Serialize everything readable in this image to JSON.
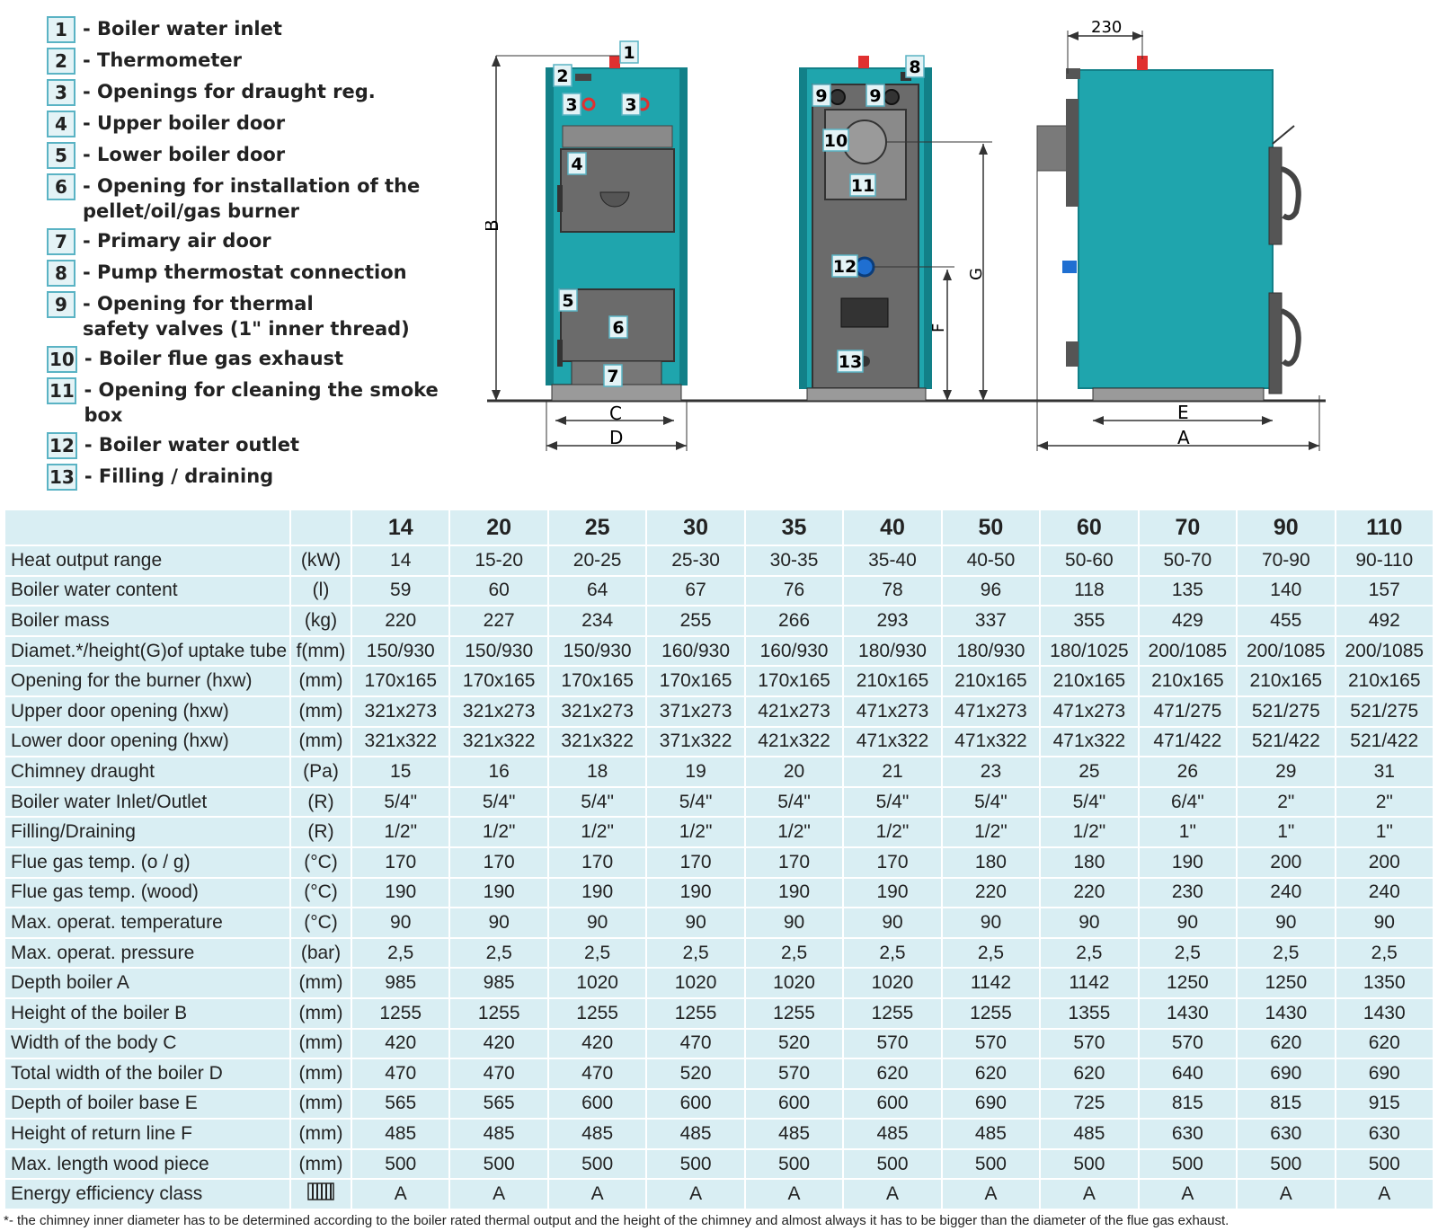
{
  "legend": [
    {
      "num": "1",
      "text": "- Boiler water inlet"
    },
    {
      "num": "2",
      "text": "- Thermometer"
    },
    {
      "num": "3",
      "text": "- Openings for draught reg."
    },
    {
      "num": "4",
      "text": "- Upper boiler door"
    },
    {
      "num": "5",
      "text": "- Lower boiler door"
    },
    {
      "num": "6",
      "text": "- Opening for installation of the\n  pellet/oil/gas burner"
    },
    {
      "num": "7",
      "text": "- Primary air door"
    },
    {
      "num": "8",
      "text": "- Pump thermostat connection"
    },
    {
      "num": "9",
      "text": "- Opening for thermal\n  safety valves (1\" inner thread)"
    },
    {
      "num": "10",
      "text": "- Boiler flue gas exhaust"
    },
    {
      "num": "11",
      "text": "- Opening for cleaning the smoke box"
    },
    {
      "num": "12",
      "text": "- Boiler water outlet"
    },
    {
      "num": "13",
      "text": "- Filling / draining"
    }
  ],
  "drawing": {
    "dim_230": "230",
    "letters": {
      "A": "A",
      "B": "B",
      "C": "C",
      "D": "D",
      "E": "E",
      "F": "F",
      "G": "G"
    },
    "colors": {
      "body": "#1fa5ad",
      "body_dark": "#128088",
      "door": "#6b6b6b",
      "accent": "#e03030",
      "label_bg": "#e4f3f6",
      "label_border": "#5ab3c4"
    }
  },
  "table": {
    "models": [
      "14",
      "20",
      "25",
      "30",
      "35",
      "40",
      "50",
      "60",
      "70",
      "90",
      "110"
    ],
    "rows": [
      {
        "label": "Heat output range",
        "unit": "(kW)",
        "values": [
          "14",
          "15-20",
          "20-25",
          "25-30",
          "30-35",
          "35-40",
          "40-50",
          "50-60",
          "50-70",
          "70-90",
          "90-110"
        ]
      },
      {
        "label": "Boiler water content",
        "unit": "(l)",
        "values": [
          "59",
          "60",
          "64",
          "67",
          "76",
          "78",
          "96",
          "118",
          "135",
          "140",
          "157"
        ]
      },
      {
        "label": "Boiler mass",
        "unit": "(kg)",
        "values": [
          "220",
          "227",
          "234",
          "255",
          "266",
          "293",
          "337",
          "355",
          "429",
          "455",
          "492"
        ]
      },
      {
        "label": "Diamet.*/height(G)of uptake tube",
        "unit": "f(mm)",
        "values": [
          "150/930",
          "150/930",
          "150/930",
          "160/930",
          "160/930",
          "180/930",
          "180/930",
          "180/1025",
          "200/1085",
          "200/1085",
          "200/1085"
        ]
      },
      {
        "label": "Opening for the burner (hxw)",
        "unit": "(mm)",
        "values": [
          "170x165",
          "170x165",
          "170x165",
          "170x165",
          "170x165",
          "210x165",
          "210x165",
          "210x165",
          "210x165",
          "210x165",
          "210x165"
        ]
      },
      {
        "label": "Upper door opening (hxw)",
        "unit": "(mm)",
        "values": [
          "321x273",
          "321x273",
          "321x273",
          "371x273",
          "421x273",
          "471x273",
          "471x273",
          "471x273",
          "471/275",
          "521/275",
          "521/275"
        ]
      },
      {
        "label": "Lower door opening (hxw)",
        "unit": "(mm)",
        "values": [
          "321x322",
          "321x322",
          "321x322",
          "371x322",
          "421x322",
          "471x322",
          "471x322",
          "471x322",
          "471/422",
          "521/422",
          "521/422"
        ]
      },
      {
        "label": "Chimney draught",
        "unit": "(Pa)",
        "values": [
          "15",
          "16",
          "18",
          "19",
          "20",
          "21",
          "23",
          "25",
          "26",
          "29",
          "31"
        ]
      },
      {
        "label": "Boiler water Inlet/Outlet",
        "unit": "(R)",
        "values": [
          "5/4\"",
          "5/4\"",
          "5/4\"",
          "5/4\"",
          "5/4\"",
          "5/4\"",
          "5/4\"",
          "5/4\"",
          "6/4\"",
          "2\"",
          "2\""
        ]
      },
      {
        "label": "Filling/Draining",
        "unit": "(R)",
        "values": [
          "1/2\"",
          "1/2\"",
          "1/2\"",
          "1/2\"",
          "1/2\"",
          "1/2\"",
          "1/2\"",
          "1/2\"",
          "1\"",
          "1\"",
          "1\""
        ]
      },
      {
        "label": "Flue gas temp. (o / g)",
        "unit": "(°C)",
        "values": [
          "170",
          "170",
          "170",
          "170",
          "170",
          "170",
          "180",
          "180",
          "190",
          "200",
          "200"
        ]
      },
      {
        "label": "Flue gas temp. (wood)",
        "unit": "(°C)",
        "values": [
          "190",
          "190",
          "190",
          "190",
          "190",
          "190",
          "220",
          "220",
          "230",
          "240",
          "240"
        ]
      },
      {
        "label": "Max. operat. temperature",
        "unit": "(°C)",
        "values": [
          "90",
          "90",
          "90",
          "90",
          "90",
          "90",
          "90",
          "90",
          "90",
          "90",
          "90"
        ]
      },
      {
        "label": "Max. operat. pressure",
        "unit": "(bar)",
        "values": [
          "2,5",
          "2,5",
          "2,5",
          "2,5",
          "2,5",
          "2,5",
          "2,5",
          "2,5",
          "2,5",
          "2,5",
          "2,5"
        ]
      },
      {
        "label": "Depth boiler A",
        "unit": "(mm)",
        "values": [
          "985",
          "985",
          "1020",
          "1020",
          "1020",
          "1020",
          "1142",
          "1142",
          "1250",
          "1250",
          "1350"
        ]
      },
      {
        "label": "Height of the boiler B",
        "unit": "(mm)",
        "values": [
          "1255",
          "1255",
          "1255",
          "1255",
          "1255",
          "1255",
          "1255",
          "1355",
          "1430",
          "1430",
          "1430"
        ]
      },
      {
        "label": "Width of the body C",
        "unit": "(mm)",
        "values": [
          "420",
          "420",
          "420",
          "470",
          "520",
          "570",
          "570",
          "570",
          "570",
          "620",
          "620"
        ]
      },
      {
        "label": "Total width of the boiler D",
        "unit": "(mm)",
        "values": [
          "470",
          "470",
          "470",
          "520",
          "570",
          "620",
          "620",
          "620",
          "640",
          "690",
          "690"
        ]
      },
      {
        "label": "Depth of boiler base E",
        "unit": "(mm)",
        "values": [
          "565",
          "565",
          "600",
          "600",
          "600",
          "600",
          "690",
          "725",
          "815",
          "815",
          "915"
        ]
      },
      {
        "label": "Height of return line F",
        "unit": "(mm)",
        "values": [
          "485",
          "485",
          "485",
          "485",
          "485",
          "485",
          "485",
          "485",
          "630",
          "630",
          "630"
        ]
      },
      {
        "label": "Max. length wood piece",
        "unit": "(mm)",
        "values": [
          "500",
          "500",
          "500",
          "500",
          "500",
          "500",
          "500",
          "500",
          "500",
          "500",
          "500"
        ]
      },
      {
        "label": "Energy efficiency class",
        "unit": "radiator-icon",
        "values": [
          "A",
          "A",
          "A",
          "A",
          "A",
          "A",
          "A",
          "A",
          "A",
          "A",
          "A"
        ]
      }
    ]
  },
  "footnote": "*- the chimney inner diameter has to be determined according to the boiler rated thermal output and the height of the chimney and almost always it has to be bigger than the diameter of the flue gas exhaust."
}
